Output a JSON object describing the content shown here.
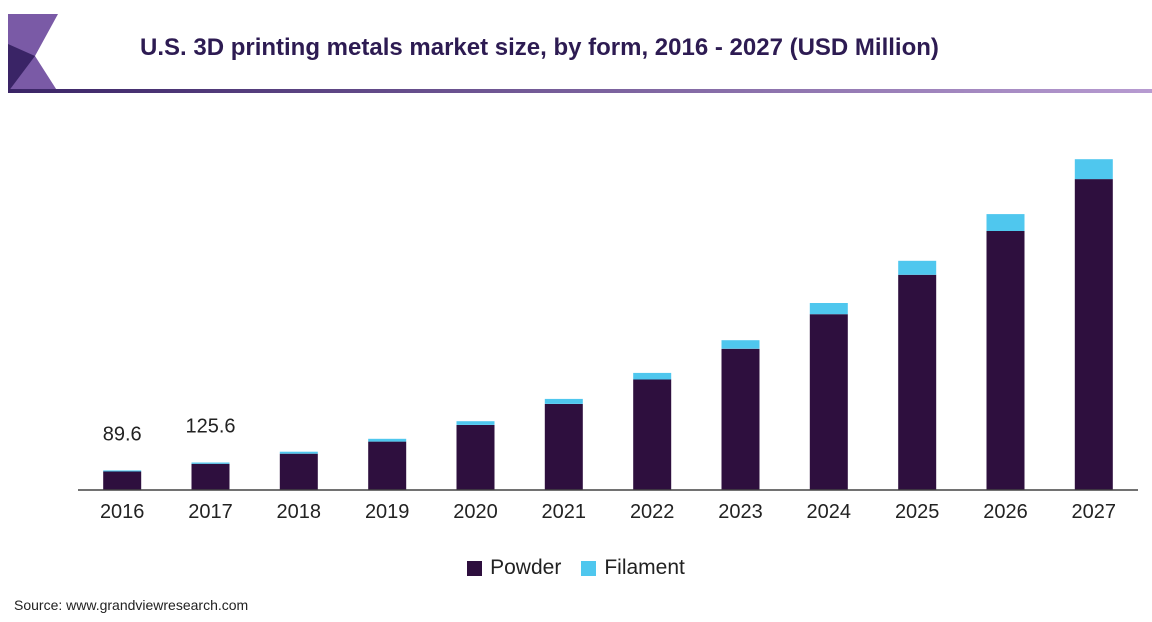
{
  "header": {
    "title": "U.S. 3D printing metals market size, by form, 2016 - 2027 (USD Million)"
  },
  "colors": {
    "powder": "#2e0f3e",
    "filament": "#4fc7ee",
    "title": "#2d1b52",
    "logo_dark": "#3a2466",
    "logo_light": "#7a5aa6"
  },
  "chart_data": {
    "type": "bar",
    "stacked": true,
    "categories": [
      "2016",
      "2017",
      "2018",
      "2019",
      "2020",
      "2021",
      "2022",
      "2023",
      "2024",
      "2025",
      "2026",
      "2027"
    ],
    "series": [
      {
        "name": "Powder",
        "values": [
          84.6,
          119.6,
          166,
          221,
          297,
          393,
          505,
          645,
          803,
          983,
          1183,
          1420
        ]
      },
      {
        "name": "Filament",
        "values": [
          5.0,
          6.0,
          9,
          13,
          17,
          23,
          30,
          39,
          51,
          64,
          77,
          91
        ]
      }
    ],
    "data_labels": [
      {
        "category": "2016",
        "text": "89.6"
      },
      {
        "category": "2017",
        "text": "125.6"
      }
    ],
    "ylim": [
      0,
      1530
    ],
    "grid": false,
    "legend_position": "bottom"
  },
  "legend": {
    "powder_label": "Powder",
    "filament_label": "Filament"
  },
  "source": "Source: www.grandviewresearch.com"
}
